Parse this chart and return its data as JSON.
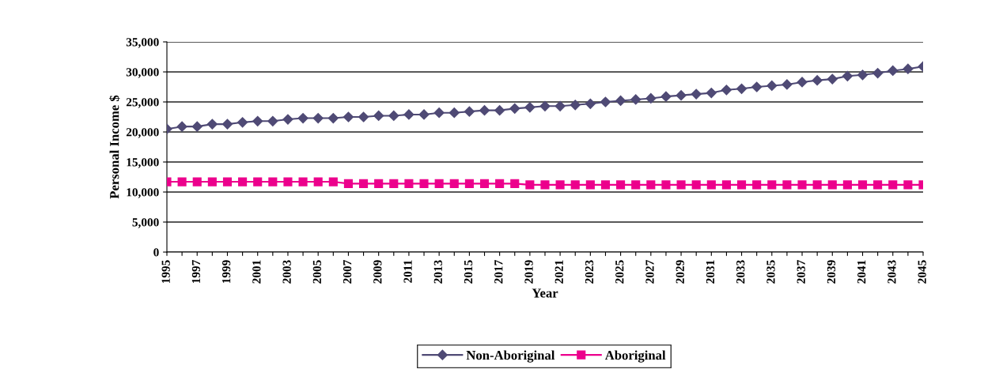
{
  "chart_data": {
    "type": "line",
    "xlabel": "Year",
    "ylabel": "Personal Income $",
    "categories": [
      "1995",
      null,
      "1997",
      null,
      "1999",
      null,
      "2001",
      null,
      "2003",
      null,
      "2005",
      null,
      "2007",
      null,
      "2009",
      null,
      "2011",
      null,
      "2013",
      null,
      "2015",
      null,
      "2017",
      null,
      "2019",
      null,
      "2021",
      null,
      "2023",
      null,
      "2025",
      null,
      "2027",
      null,
      "2029",
      null,
      "2031",
      null,
      "2033",
      null,
      "2035",
      null,
      "2037",
      null,
      "2039",
      null,
      "2041",
      null,
      "2043",
      null,
      "2045"
    ],
    "series": [
      {
        "name": "Non-Aboriginal",
        "color": "#4f4a75",
        "marker": "diamond",
        "values": [
          20500,
          20900,
          20900,
          21300,
          21300,
          21600,
          21800,
          21800,
          22100,
          22300,
          22300,
          22300,
          22500,
          22500,
          22700,
          22700,
          22900,
          22900,
          23200,
          23200,
          23400,
          23600,
          23600,
          23900,
          24100,
          24300,
          24300,
          24500,
          24700,
          25000,
          25200,
          25400,
          25600,
          25900,
          26100,
          26300,
          26500,
          27000,
          27200,
          27500,
          27700,
          27900,
          28300,
          28600,
          28800,
          29300,
          29500,
          29800,
          30200,
          30500,
          30900
        ]
      },
      {
        "name": "Aboriginal",
        "color": "#ec008c",
        "marker": "square",
        "values": [
          11700,
          11700,
          11700,
          11700,
          11700,
          11700,
          11700,
          11700,
          11700,
          11700,
          11700,
          11700,
          11400,
          11400,
          11400,
          11400,
          11400,
          11400,
          11400,
          11400,
          11400,
          11400,
          11400,
          11400,
          11200,
          11200,
          11200,
          11200,
          11200,
          11200,
          11200,
          11200,
          11200,
          11200,
          11200,
          11200,
          11200,
          11200,
          11200,
          11200,
          11200,
          11200,
          11200,
          11200,
          11200,
          11200,
          11200,
          11200,
          11200,
          11200,
          11200
        ]
      }
    ],
    "ylim": [
      0,
      35000
    ],
    "yticks": [
      {
        "value": 0,
        "label": "0"
      },
      {
        "value": 5000,
        "label": "5,000"
      },
      {
        "value": 10000,
        "label": "10,000"
      },
      {
        "value": 15000,
        "label": "15,000"
      },
      {
        "value": 20000,
        "label": "20,000"
      },
      {
        "value": 25000,
        "label": "25,000"
      },
      {
        "value": 30000,
        "label": "30,000"
      },
      {
        "value": 35000,
        "label": "35,000"
      }
    ],
    "grid": "y",
    "legend": "bottom"
  }
}
